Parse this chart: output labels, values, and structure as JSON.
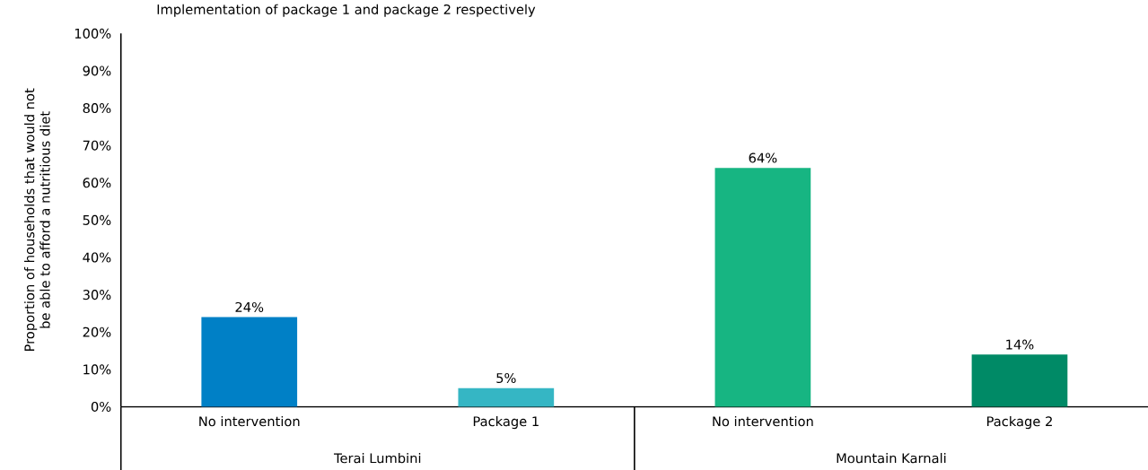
{
  "chart_data": {
    "type": "bar",
    "title": "Implementation of package 1 and package 2 respectively",
    "ylabel": "Proportion of households that would not be able to afford a nutritious diet",
    "categories": [
      "No intervention",
      "Package 1",
      "No intervention",
      "Package 2"
    ],
    "values": [
      24,
      5,
      64,
      14
    ],
    "colors": [
      "#0080c6",
      "#35b6c4",
      "#17b582",
      "#008a66"
    ],
    "value_labels": [
      "24%",
      "5%",
      "64%",
      "14%"
    ],
    "annotations": [
      "Terai Lumbini",
      "Mountain Karnali"
    ],
    "ylim": [
      0,
      100
    ],
    "yticks": [
      {
        "value": 0,
        "label": "0%"
      },
      {
        "value": 10,
        "label": "10%"
      },
      {
        "value": 20,
        "label": "20%"
      },
      {
        "value": 30,
        "label": "30%"
      },
      {
        "value": 40,
        "label": "40%"
      },
      {
        "value": 50,
        "label": "50%"
      },
      {
        "value": 60,
        "label": "60%"
      },
      {
        "value": 70,
        "label": "70%"
      },
      {
        "value": 80,
        "label": "80%"
      },
      {
        "value": 90,
        "label": "90%"
      },
      {
        "value": 100,
        "label": "100%"
      }
    ]
  }
}
